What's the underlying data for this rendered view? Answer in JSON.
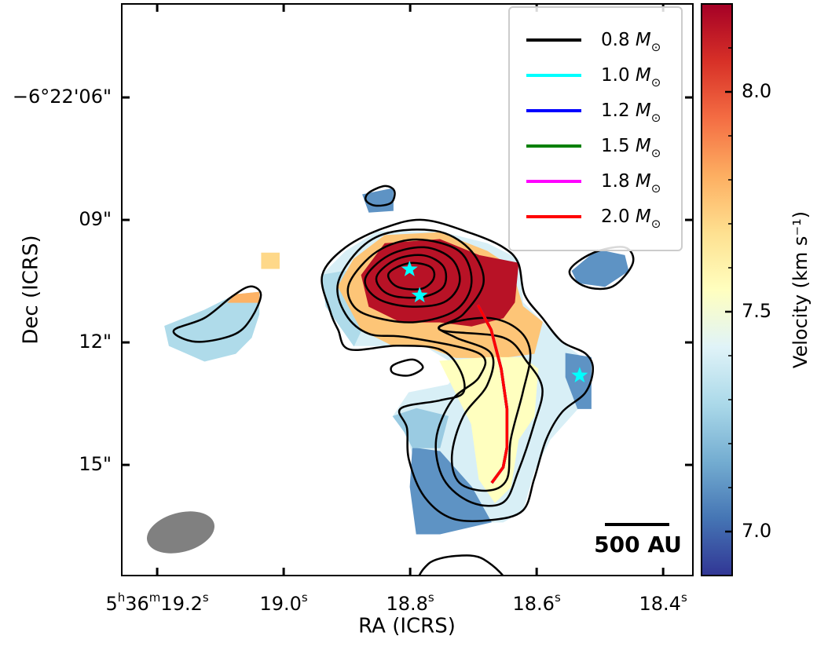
{
  "chart_data": {
    "type": "velocity_map",
    "xlabel": "RA (ICRS)",
    "ylabel": "Dec (ICRS)",
    "colorbar_label": "Velocity (km s⁻¹)",
    "colormap": "RdYlBu_r",
    "xlim": [
      19.256,
      18.353
    ],
    "ylim": [
      17.71,
      3.71
    ],
    "xticks": [
      {
        "value": 19.2,
        "label": "5h36m19.2s"
      },
      {
        "value": 19.0,
        "label": "19.0s"
      },
      {
        "value": 18.8,
        "label": "18.8s"
      },
      {
        "value": 18.6,
        "label": "18.6s"
      },
      {
        "value": 18.4,
        "label": "18.4s"
      }
    ],
    "yticks": [
      {
        "value": 6,
        "label": "−6°22'06\""
      },
      {
        "value": 9,
        "label": "09\""
      },
      {
        "value": 12,
        "label": "12\""
      },
      {
        "value": 15,
        "label": "15\""
      }
    ],
    "clim": [
      6.9,
      8.2
    ],
    "cticks": [
      {
        "value": 7,
        "label": "7.0"
      },
      {
        "value": 7.5,
        "label": "7.5"
      },
      {
        "value": 8,
        "label": "8.0"
      }
    ],
    "cminor_ticks": [
      7.1,
      7.2,
      7.3,
      7.4,
      7.6,
      7.7,
      7.8,
      7.9,
      8.1
    ],
    "scalebar_label": "500 AU",
    "legend_loc": "upper right",
    "velocity_map": [
      {
        "velocity": 7.4,
        "points": [
          [
            18.939,
            10.35
          ],
          [
            18.902,
            9.77
          ],
          [
            18.852,
            9.29
          ],
          [
            18.753,
            9.29
          ],
          [
            18.678,
            9.58
          ],
          [
            18.629,
            9.96
          ],
          [
            18.622,
            11.02
          ],
          [
            18.591,
            11.5
          ],
          [
            18.554,
            12.08
          ],
          [
            18.511,
            12.56
          ],
          [
            18.517,
            13.23
          ],
          [
            18.535,
            13.62
          ],
          [
            18.579,
            14.38
          ],
          [
            18.604,
            15.15
          ],
          [
            18.622,
            16.12
          ],
          [
            18.653,
            16.4
          ],
          [
            18.716,
            16.4
          ],
          [
            18.753,
            16.69
          ],
          [
            18.79,
            16.69
          ],
          [
            18.796,
            15.73
          ],
          [
            18.79,
            14.96
          ],
          [
            18.809,
            14.19
          ],
          [
            18.827,
            13.81
          ],
          [
            18.802,
            13.23
          ],
          [
            18.74,
            13.04
          ],
          [
            18.716,
            12.65
          ],
          [
            18.778,
            12.08
          ],
          [
            18.889,
            12.08
          ],
          [
            18.933,
            11.12
          ]
        ]
      },
      {
        "velocity": 7.3,
        "points": [
          [
            19.188,
            11.6
          ],
          [
            19.125,
            11.21
          ],
          [
            19.076,
            10.83
          ],
          [
            19.039,
            10.77
          ],
          [
            19.039,
            11.31
          ],
          [
            19.051,
            11.88
          ],
          [
            19.076,
            12.27
          ],
          [
            19.125,
            12.46
          ],
          [
            19.181,
            12.08
          ]
        ]
      },
      {
        "velocity": 7.8,
        "points": [
          [
            19.088,
            11.02
          ],
          [
            19.076,
            10.83
          ],
          [
            19.039,
            10.77
          ],
          [
            19.039,
            11.02
          ]
        ]
      },
      {
        "velocity": 7.7,
        "points": [
          [
            19.035,
            9.81
          ],
          [
            19.007,
            9.81
          ],
          [
            19.007,
            10.19
          ],
          [
            19.035,
            10.19
          ]
        ]
      },
      {
        "velocity": 7.1,
        "points": [
          [
            18.875,
            8.38
          ],
          [
            18.827,
            8.23
          ],
          [
            18.827,
            8.77
          ],
          [
            18.865,
            8.81
          ]
        ]
      },
      {
        "velocity": 7.1,
        "points": [
          [
            18.544,
            10.25
          ],
          [
            18.504,
            9.73
          ],
          [
            18.461,
            9.87
          ],
          [
            18.455,
            10.25
          ],
          [
            18.492,
            10.63
          ],
          [
            18.535,
            10.54
          ]
        ]
      },
      {
        "velocity": 7.1,
        "points": [
          [
            18.796,
            14.58
          ],
          [
            18.753,
            14.67
          ],
          [
            18.703,
            15.54
          ],
          [
            18.672,
            16.4
          ],
          [
            18.753,
            16.69
          ],
          [
            18.79,
            16.69
          ],
          [
            18.8,
            15.54
          ]
        ]
      },
      {
        "velocity": 7.25,
        "points": [
          [
            18.827,
            13.81
          ],
          [
            18.79,
            13.62
          ],
          [
            18.74,
            13.81
          ],
          [
            18.753,
            14.58
          ],
          [
            18.796,
            14.58
          ],
          [
            18.809,
            14.19
          ]
        ]
      },
      {
        "velocity": 7.3,
        "points": [
          [
            18.939,
            10.35
          ],
          [
            18.902,
            10.25
          ],
          [
            18.877,
            11.69
          ],
          [
            18.889,
            12.08
          ],
          [
            18.933,
            11.12
          ]
        ]
      },
      {
        "velocity": 7.1,
        "points": [
          [
            18.554,
            12.27
          ],
          [
            18.514,
            12.37
          ],
          [
            18.514,
            13.62
          ],
          [
            18.535,
            13.62
          ],
          [
            18.554,
            12.85
          ]
        ]
      },
      {
        "velocity": 7.75,
        "points": [
          [
            18.914,
            10.63
          ],
          [
            18.889,
            9.96
          ],
          [
            18.84,
            9.38
          ],
          [
            18.753,
            9.31
          ],
          [
            18.678,
            9.77
          ],
          [
            18.641,
            10.15
          ],
          [
            18.622,
            11.12
          ],
          [
            18.591,
            11.5
          ],
          [
            18.604,
            12.27
          ],
          [
            18.653,
            12.37
          ],
          [
            18.728,
            12.37
          ],
          [
            18.778,
            12.08
          ],
          [
            18.827,
            12.08
          ],
          [
            18.877,
            11.69
          ]
        ]
      },
      {
        "velocity": 7.55,
        "points": [
          [
            18.753,
            12.46
          ],
          [
            18.678,
            12.37
          ],
          [
            18.622,
            12.37
          ],
          [
            18.598,
            12.65
          ],
          [
            18.604,
            13.81
          ],
          [
            18.629,
            14.38
          ],
          [
            18.641,
            15.54
          ],
          [
            18.666,
            15.92
          ],
          [
            18.691,
            15.35
          ],
          [
            18.703,
            14.0
          ],
          [
            18.728,
            13.23
          ]
        ]
      },
      {
        "velocity": 8.15,
        "points": [
          [
            18.877,
            10.35
          ],
          [
            18.84,
            9.58
          ],
          [
            18.753,
            9.48
          ],
          [
            18.691,
            9.87
          ],
          [
            18.629,
            10.06
          ],
          [
            18.635,
            11.02
          ],
          [
            18.653,
            11.4
          ],
          [
            18.703,
            11.6
          ],
          [
            18.753,
            11.5
          ],
          [
            18.815,
            11.5
          ],
          [
            18.865,
            11.12
          ]
        ]
      }
    ],
    "contours": [
      [
        [
          18.865,
          8.33
        ],
        [
          18.84,
          8.17
        ],
        [
          18.825,
          8.29
        ],
        [
          18.83,
          8.58
        ],
        [
          18.855,
          8.65
        ],
        [
          18.87,
          8.52
        ]
      ],
      [
        [
          19.173,
          11.69
        ],
        [
          19.125,
          11.4
        ],
        [
          19.082,
          10.88
        ],
        [
          19.053,
          10.63
        ],
        [
          19.036,
          10.83
        ],
        [
          19.051,
          11.4
        ],
        [
          19.076,
          11.79
        ],
        [
          19.125,
          11.98
        ],
        [
          19.157,
          11.92
        ]
      ],
      [
        [
          18.548,
          10.25
        ],
        [
          18.511,
          9.81
        ],
        [
          18.461,
          9.67
        ],
        [
          18.448,
          10.06
        ],
        [
          18.48,
          10.63
        ],
        [
          18.523,
          10.63
        ]
      ],
      [
        [
          18.827,
          12.56
        ],
        [
          18.796,
          12.42
        ],
        [
          18.78,
          12.62
        ],
        [
          18.802,
          12.81
        ],
        [
          18.827,
          12.75
        ]
      ],
      [
        [
          18.778,
          17.94
        ],
        [
          18.771,
          17.42
        ],
        [
          18.728,
          17.23
        ],
        [
          18.684,
          17.31
        ],
        [
          18.653,
          17.94
        ]
      ],
      [
        [
          18.939,
          10.35
        ],
        [
          18.902,
          9.67
        ],
        [
          18.84,
          9.19
        ],
        [
          18.778,
          9.0
        ],
        [
          18.703,
          9.33
        ],
        [
          18.653,
          9.67
        ],
        [
          18.629,
          10.06
        ],
        [
          18.619,
          10.83
        ],
        [
          18.591,
          11.4
        ],
        [
          18.56,
          11.98
        ],
        [
          18.523,
          12.27
        ],
        [
          18.511,
          12.65
        ],
        [
          18.523,
          13.23
        ],
        [
          18.56,
          13.71
        ],
        [
          18.585,
          14.38
        ],
        [
          18.604,
          15.35
        ],
        [
          18.622,
          16.12
        ],
        [
          18.672,
          16.35
        ],
        [
          18.734,
          16.31
        ],
        [
          18.778,
          15.77
        ],
        [
          18.802,
          14.87
        ],
        [
          18.805,
          14.1
        ],
        [
          18.815,
          13.62
        ],
        [
          18.753,
          13.42
        ],
        [
          18.716,
          13.23
        ],
        [
          18.722,
          12.65
        ],
        [
          18.753,
          12.17
        ],
        [
          18.821,
          12.08
        ],
        [
          18.896,
          12.17
        ],
        [
          18.914,
          11.69
        ],
        [
          18.927,
          11.21
        ]
      ],
      [
        [
          18.914,
          10.54
        ],
        [
          18.877,
          9.67
        ],
        [
          18.827,
          9.29
        ],
        [
          18.753,
          9.29
        ],
        [
          18.703,
          9.77
        ],
        [
          18.684,
          10.54
        ],
        [
          18.716,
          11.31
        ],
        [
          18.753,
          11.69
        ],
        [
          18.653,
          11.88
        ],
        [
          18.616,
          12.46
        ],
        [
          18.591,
          13.13
        ],
        [
          18.604,
          14.0
        ],
        [
          18.629,
          15.15
        ],
        [
          18.653,
          15.92
        ],
        [
          18.703,
          15.92
        ],
        [
          18.747,
          15.35
        ],
        [
          18.759,
          14.38
        ],
        [
          18.734,
          13.42
        ],
        [
          18.691,
          12.85
        ],
        [
          18.691,
          12.27
        ],
        [
          18.802,
          11.88
        ],
        [
          18.865,
          11.79
        ],
        [
          18.902,
          11.31
        ]
      ],
      [
        [
          18.896,
          10.54
        ],
        [
          18.852,
          9.77
        ],
        [
          18.79,
          9.48
        ],
        [
          18.722,
          9.77
        ],
        [
          18.703,
          10.54
        ],
        [
          18.728,
          11.21
        ],
        [
          18.79,
          11.5
        ],
        [
          18.852,
          11.4
        ],
        [
          18.889,
          11.12
        ]
      ],
      [
        [
          18.753,
          11.6
        ],
        [
          18.678,
          11.4
        ],
        [
          18.629,
          11.69
        ],
        [
          18.61,
          12.27
        ],
        [
          18.622,
          13.23
        ],
        [
          18.641,
          14.38
        ],
        [
          18.647,
          15.35
        ],
        [
          18.678,
          15.63
        ],
        [
          18.722,
          15.44
        ],
        [
          18.734,
          14.77
        ],
        [
          18.716,
          13.81
        ],
        [
          18.678,
          13.04
        ],
        [
          18.672,
          12.27
        ],
        [
          18.728,
          11.88
        ]
      ],
      [
        [
          18.871,
          10.44
        ],
        [
          18.834,
          9.87
        ],
        [
          18.778,
          9.67
        ],
        [
          18.734,
          9.96
        ],
        [
          18.722,
          10.54
        ],
        [
          18.747,
          11.02
        ],
        [
          18.802,
          11.12
        ],
        [
          18.852,
          10.92
        ]
      ],
      [
        [
          18.852,
          10.35
        ],
        [
          18.821,
          9.96
        ],
        [
          18.778,
          9.87
        ],
        [
          18.747,
          10.15
        ],
        [
          18.747,
          10.63
        ],
        [
          18.778,
          10.88
        ],
        [
          18.821,
          10.88
        ],
        [
          18.846,
          10.69
        ]
      ],
      [
        [
          18.834,
          10.31
        ],
        [
          18.802,
          10.06
        ],
        [
          18.768,
          10.15
        ],
        [
          18.763,
          10.44
        ],
        [
          18.783,
          10.69
        ],
        [
          18.821,
          10.63
        ]
      ]
    ],
    "stars": {
      "color": "#00ffff",
      "x": [
        18.801,
        18.785,
        18.532
      ],
      "y": [
        10.21,
        10.85,
        12.81
      ]
    },
    "series": [
      {
        "name": "0.8 M⊙",
        "color": "#000000",
        "x": [
          18.693,
          18.672,
          18.656,
          18.647,
          18.647,
          18.653,
          18.671
        ],
        "y": [
          11.08,
          11.69,
          12.65,
          13.62,
          14.58,
          15.06,
          15.44
        ]
      },
      {
        "name": "1.0 M⊙",
        "color": "#00ffff",
        "x": [
          18.693,
          18.672,
          18.656,
          18.647,
          18.647,
          18.653,
          18.671
        ],
        "y": [
          11.08,
          11.69,
          12.65,
          13.62,
          14.58,
          15.06,
          15.44
        ]
      },
      {
        "name": "1.2 M⊙",
        "color": "#0000ff",
        "x": [
          18.693,
          18.672,
          18.656,
          18.647,
          18.647,
          18.653,
          18.671
        ],
        "y": [
          11.08,
          11.69,
          12.65,
          13.62,
          14.58,
          15.06,
          15.44
        ]
      },
      {
        "name": "1.5 M⊙",
        "color": "#008000",
        "x": [
          18.693,
          18.672,
          18.656,
          18.647,
          18.647,
          18.653,
          18.671
        ],
        "y": [
          11.08,
          11.69,
          12.65,
          13.62,
          14.58,
          15.06,
          15.44
        ]
      },
      {
        "name": "1.8 M⊙",
        "color": "#ff00ff",
        "x": [
          18.693,
          18.672,
          18.656,
          18.647,
          18.647,
          18.653,
          18.671
        ],
        "y": [
          11.08,
          11.69,
          12.65,
          13.62,
          14.58,
          15.06,
          15.44
        ]
      },
      {
        "name": "2.0 M⊙",
        "color": "#ff0000",
        "x": [
          18.693,
          18.672,
          18.656,
          18.647,
          18.647,
          18.653,
          18.671
        ],
        "y": [
          11.08,
          11.69,
          12.65,
          13.62,
          14.58,
          15.06,
          15.44
        ]
      }
    ]
  }
}
